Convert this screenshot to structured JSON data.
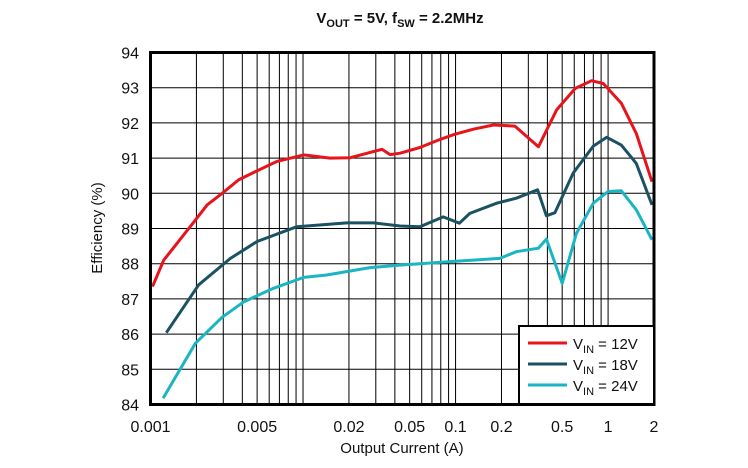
{
  "chart_data": {
    "type": "line",
    "title": {
      "main1": "V",
      "sub1": "OUT",
      "main2": " = 5V, f",
      "sub2": "SW",
      "main3": " = 2.2MHz"
    },
    "xlabel": "Output Current (A)",
    "ylabel": "Efficiency (%)",
    "xscale": "log",
    "xlim": [
      0.001,
      2
    ],
    "ylim": [
      84,
      94
    ],
    "grid": true,
    "legend_position": "bottom-right",
    "xticks": [
      {
        "value": 0.001,
        "label": "0.001"
      },
      {
        "value": 0.005,
        "label": "0.005"
      },
      {
        "value": 0.02,
        "label": "0.02"
      },
      {
        "value": 0.05,
        "label": "0.05"
      },
      {
        "value": 0.1,
        "label": "0.1"
      },
      {
        "value": 0.2,
        "label": "0.2"
      },
      {
        "value": 0.5,
        "label": "0.5"
      },
      {
        "value": 1,
        "label": "1"
      },
      {
        "value": 2,
        "label": "2"
      }
    ],
    "yticks": [
      84,
      85,
      86,
      87,
      88,
      89,
      90,
      91,
      92,
      93,
      94
    ],
    "series": [
      {
        "name_main": "V",
        "name_sub": "IN",
        "name_rest": " = 12V",
        "color": "#e8141b",
        "x": [
          0.00103,
          0.00122,
          0.00197,
          0.00235,
          0.00295,
          0.00378,
          0.005,
          0.0067,
          0.0101,
          0.015,
          0.0204,
          0.0329,
          0.0372,
          0.0433,
          0.0584,
          0.0792,
          0.0992,
          0.131,
          0.177,
          0.245,
          0.349,
          0.46,
          0.61,
          0.78,
          0.93,
          1.22,
          1.53,
          1.94
        ],
        "y": [
          87.35,
          88.1,
          89.24,
          89.67,
          90.0,
          90.38,
          90.64,
          90.9,
          91.09,
          91.0,
          91.01,
          91.25,
          91.1,
          91.14,
          91.3,
          91.53,
          91.68,
          91.82,
          91.94,
          91.91,
          91.32,
          92.37,
          92.98,
          93.2,
          93.12,
          92.56,
          91.7,
          90.33
        ]
      },
      {
        "name_main": "V",
        "name_sub": "IN",
        "name_rest": " = 18V",
        "color": "#1a5262",
        "x": [
          0.00127,
          0.00207,
          0.00334,
          0.005,
          0.0091,
          0.0194,
          0.029,
          0.0433,
          0.0584,
          0.083,
          0.106,
          0.124,
          0.186,
          0.25,
          0.345,
          0.394,
          0.448,
          0.59,
          0.8,
          0.98,
          1.22,
          1.53,
          1.94
        ],
        "y": [
          86.04,
          87.4,
          88.15,
          88.63,
          89.05,
          89.16,
          89.16,
          89.07,
          89.05,
          89.33,
          89.15,
          89.43,
          89.72,
          89.86,
          90.1,
          89.36,
          89.45,
          90.57,
          91.34,
          91.59,
          91.37,
          90.85,
          89.67
        ]
      },
      {
        "name_main": "V",
        "name_sub": "IN",
        "name_rest": " = 24V",
        "color": "#1ab5c3",
        "x": [
          0.00121,
          0.00197,
          0.00295,
          0.0041,
          0.0064,
          0.0101,
          0.0143,
          0.0275,
          0.0433,
          0.092,
          0.195,
          0.25,
          0.349,
          0.394,
          0.5,
          0.62,
          0.8,
          1.0,
          1.22,
          1.53,
          1.94
        ],
        "y": [
          84.18,
          85.74,
          86.48,
          86.92,
          87.3,
          87.61,
          87.68,
          87.89,
          87.96,
          88.06,
          88.15,
          88.34,
          88.44,
          88.7,
          87.44,
          88.86,
          89.72,
          90.05,
          90.07,
          89.53,
          88.68
        ]
      }
    ]
  }
}
